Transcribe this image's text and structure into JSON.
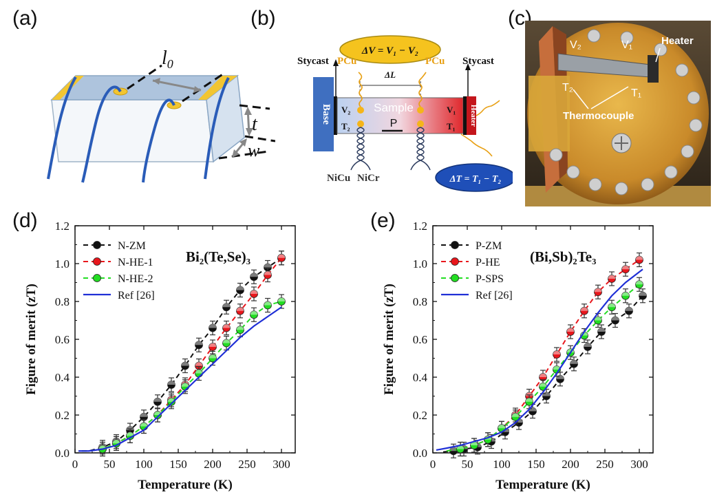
{
  "panels": {
    "a": "(a)",
    "b": "(b)",
    "c": "(c)",
    "d": "(d)",
    "e": "(e)"
  },
  "diagram_a": {
    "l0": "l",
    "l0_sub": "0",
    "t": "t",
    "w": "w"
  },
  "diagram_b": {
    "dv_formula": "ΔV = V₁ − V₂",
    "dt_formula": "ΔT = T₁ − T₂",
    "stycast_left": "Stycast",
    "stycast_right": "Stycast",
    "pcu_left": "PCu",
    "pcu_right": "PCu",
    "dl": "ΔL",
    "base": "Base",
    "heater": "Heater",
    "sample": "Sample",
    "p": "P",
    "v2": "V₂",
    "v1": "V₁",
    "t2": "T₂",
    "t1": "T₁",
    "nicu": "NiCu",
    "nicr": "NiCr"
  },
  "photo_c": {
    "v2": "V₂",
    "v1": "V₁",
    "t2": "T₂",
    "t1": "T₁",
    "heater": "Heater",
    "thermocouple": "Thermocouple"
  },
  "chart_data": [
    {
      "type": "line",
      "panel": "(d)",
      "annotation": "Bi₂(Te,Se)₃",
      "xlabel": "Temperature (K)",
      "ylabel": "Figure of merit (zT)",
      "xlim": [
        0,
        320
      ],
      "ylim": [
        0,
        1.2
      ],
      "xticks": [
        0,
        50,
        100,
        150,
        200,
        250,
        300
      ],
      "yticks": [
        0.0,
        0.2,
        0.4,
        0.6,
        0.8,
        1.0,
        1.2
      ],
      "legend": "top-left",
      "series": [
        {
          "name": "N-ZM",
          "color": "#111111",
          "style": "dashed-markers",
          "x": [
            10,
            20,
            40,
            60,
            80,
            100,
            120,
            140,
            160,
            180,
            200,
            220,
            240,
            260,
            280,
            300
          ],
          "y": [
            0.01,
            0.01,
            0.03,
            0.06,
            0.12,
            0.19,
            0.27,
            0.36,
            0.46,
            0.57,
            0.66,
            0.77,
            0.86,
            0.93,
            0.98,
            1.03
          ]
        },
        {
          "name": "N-HE-1",
          "color": "#e8161c",
          "style": "dashed-markers",
          "x": [
            10,
            20,
            40,
            60,
            80,
            100,
            120,
            140,
            160,
            180,
            200,
            220,
            240,
            260,
            280,
            300
          ],
          "y": [
            0.01,
            0.01,
            0.02,
            0.05,
            0.09,
            0.14,
            0.2,
            0.28,
            0.36,
            0.46,
            0.56,
            0.66,
            0.75,
            0.84,
            0.94,
            1.03
          ]
        },
        {
          "name": "N-HE-2",
          "color": "#22dd22",
          "style": "dashed-markers",
          "x": [
            10,
            20,
            40,
            60,
            80,
            100,
            120,
            140,
            160,
            180,
            200,
            220,
            240,
            260,
            280,
            300
          ],
          "y": [
            0.01,
            0.01,
            0.02,
            0.05,
            0.09,
            0.14,
            0.2,
            0.27,
            0.35,
            0.42,
            0.5,
            0.58,
            0.65,
            0.73,
            0.78,
            0.8
          ]
        },
        {
          "name": "Ref [26]",
          "color": "#1f2fd6",
          "style": "solid",
          "x": [
            5,
            20,
            40,
            60,
            80,
            100,
            120,
            140,
            160,
            180,
            200,
            220,
            240,
            260,
            280,
            300
          ],
          "y": [
            0.01,
            0.01,
            0.02,
            0.04,
            0.08,
            0.12,
            0.19,
            0.26,
            0.33,
            0.4,
            0.47,
            0.54,
            0.61,
            0.67,
            0.72,
            0.77
          ]
        }
      ]
    },
    {
      "type": "line",
      "panel": "(e)",
      "annotation": "(Bi,Sb)₂Te₃",
      "xlabel": "Temperature (K)",
      "ylabel": "Figure of merit (zT)",
      "xlim": [
        0,
        320
      ],
      "ylim": [
        0,
        1.2
      ],
      "xticks": [
        0,
        50,
        100,
        150,
        200,
        250,
        300
      ],
      "yticks": [
        0.0,
        0.2,
        0.4,
        0.6,
        0.8,
        1.0,
        1.2
      ],
      "legend": "top-left",
      "series": [
        {
          "name": "P-ZM",
          "color": "#111111",
          "style": "dashed-markers",
          "x": [
            15,
            30,
            45,
            65,
            85,
            105,
            125,
            145,
            165,
            185,
            205,
            225,
            245,
            265,
            285,
            305
          ],
          "y": [
            0.005,
            0.01,
            0.02,
            0.03,
            0.06,
            0.11,
            0.16,
            0.22,
            0.3,
            0.39,
            0.47,
            0.56,
            0.64,
            0.7,
            0.75,
            0.83
          ]
        },
        {
          "name": "P-HE",
          "color": "#e8161c",
          "style": "dashed-markers",
          "x": [
            20,
            40,
            60,
            80,
            100,
            120,
            140,
            160,
            180,
            200,
            220,
            240,
            260,
            280,
            300
          ],
          "y": [
            0.01,
            0.02,
            0.04,
            0.07,
            0.13,
            0.2,
            0.3,
            0.4,
            0.52,
            0.64,
            0.75,
            0.85,
            0.92,
            0.97,
            1.02
          ]
        },
        {
          "name": "P-SPS",
          "color": "#22dd22",
          "style": "dashed-markers",
          "x": [
            20,
            40,
            60,
            80,
            100,
            120,
            140,
            160,
            180,
            200,
            220,
            240,
            260,
            280,
            300
          ],
          "y": [
            0.01,
            0.02,
            0.04,
            0.07,
            0.13,
            0.19,
            0.27,
            0.35,
            0.44,
            0.53,
            0.62,
            0.7,
            0.77,
            0.83,
            0.89
          ]
        },
        {
          "name": "Ref [26]",
          "color": "#1f2fd6",
          "style": "solid",
          "x": [
            5,
            20,
            40,
            60,
            80,
            100,
            120,
            140,
            160,
            180,
            200,
            220,
            240,
            260,
            280,
            305
          ],
          "y": [
            0.015,
            0.025,
            0.04,
            0.06,
            0.08,
            0.11,
            0.16,
            0.23,
            0.32,
            0.42,
            0.53,
            0.64,
            0.74,
            0.83,
            0.9,
            0.97
          ]
        }
      ]
    }
  ]
}
